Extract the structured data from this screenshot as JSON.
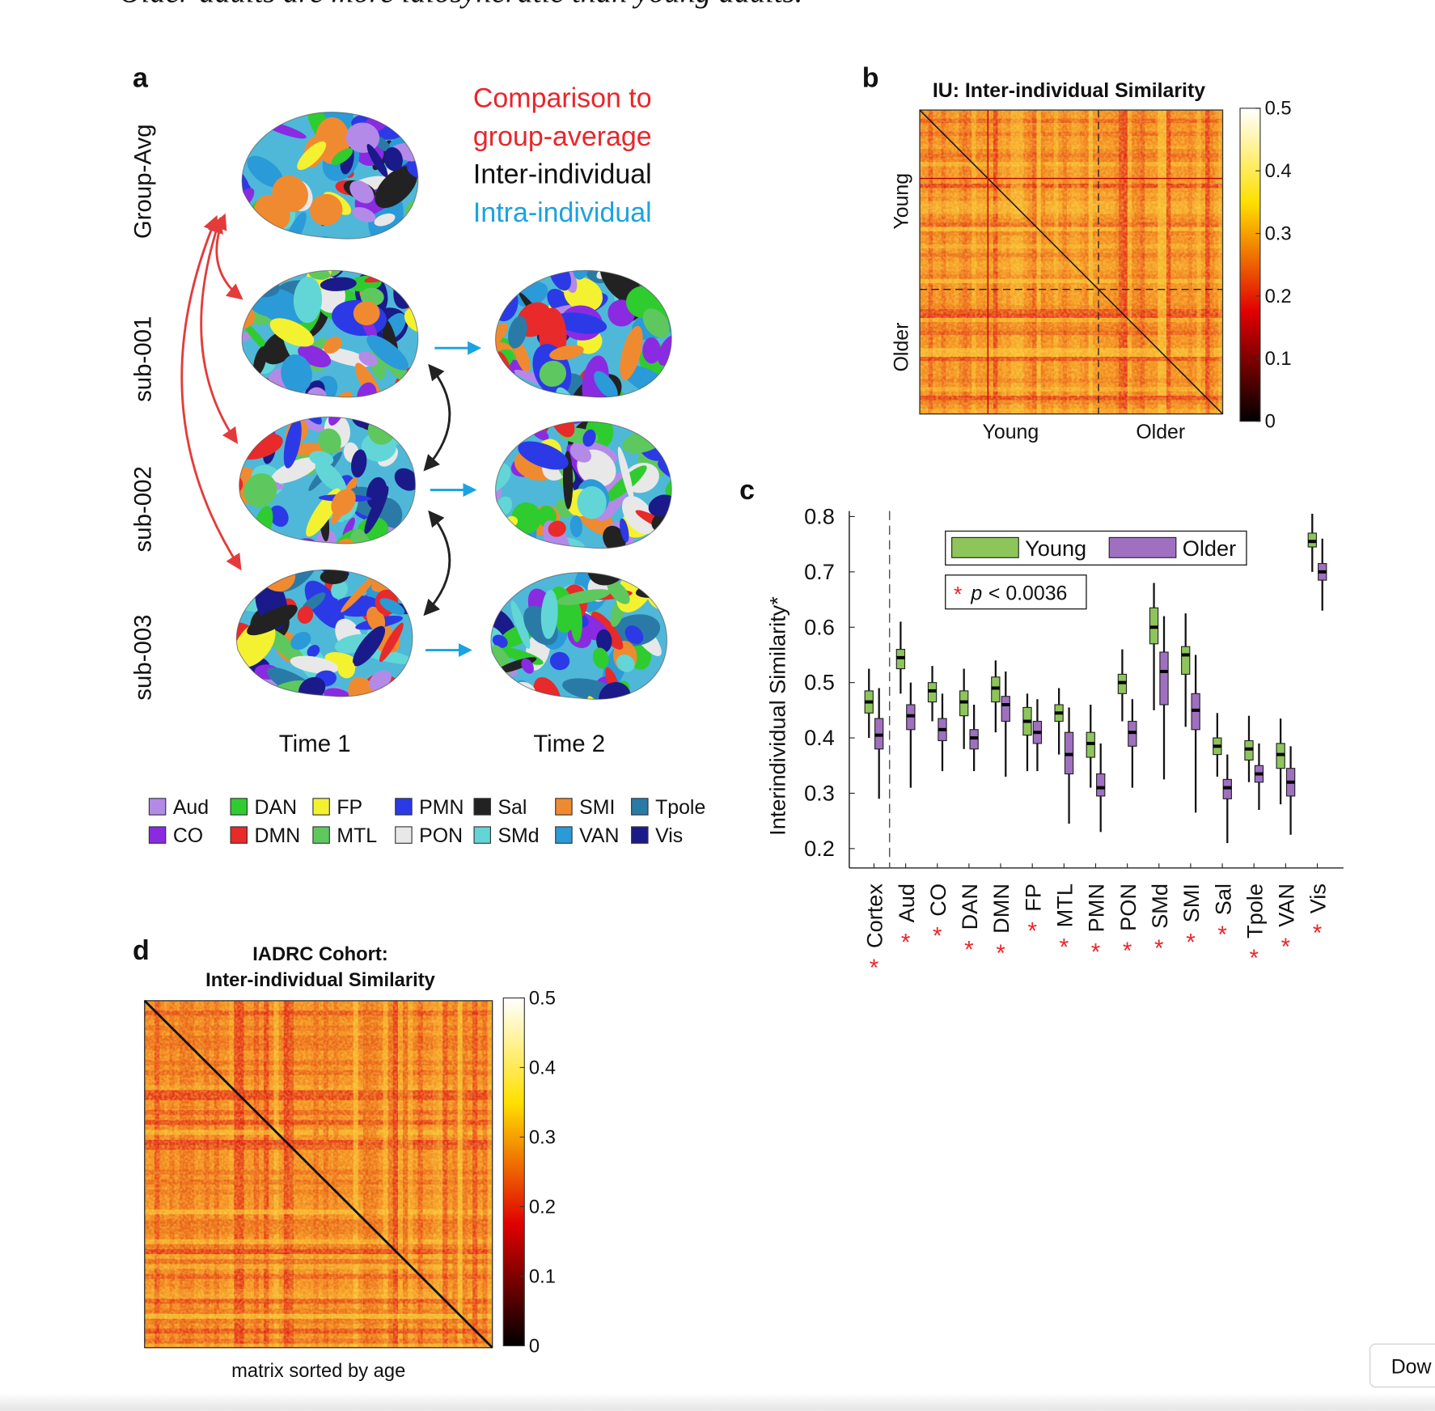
{
  "caption": "Older adults are more idiosyncratic than young adults.",
  "panel_a": {
    "label": "a",
    "legend_lines": [
      "Comparison to",
      "group-average",
      "Inter-individual",
      "Intra-individual"
    ],
    "rows": [
      "Group-Avg",
      "sub-001",
      "sub-002",
      "sub-003"
    ],
    "columns": [
      "Time 1",
      "Time 2"
    ],
    "networks": [
      {
        "name": "Aud",
        "color": "#b48ae8"
      },
      {
        "name": "DAN",
        "color": "#2fcc2f"
      },
      {
        "name": "FP",
        "color": "#f4f230"
      },
      {
        "name": "PMN",
        "color": "#2b3ae6"
      },
      {
        "name": "Sal",
        "color": "#222222"
      },
      {
        "name": "SMI",
        "color": "#f08a30"
      },
      {
        "name": "Tpole",
        "color": "#2a7aa8"
      },
      {
        "name": "CO",
        "color": "#8a2be2"
      },
      {
        "name": "DMN",
        "color": "#e82a2a"
      },
      {
        "name": "MTL",
        "color": "#5ec85e"
      },
      {
        "name": "PON",
        "color": "#e8e8e8"
      },
      {
        "name": "SMd",
        "color": "#62d6d6"
      },
      {
        "name": "VAN",
        "color": "#2a9ad8"
      },
      {
        "name": "Vis",
        "color": "#1a1a8a"
      }
    ]
  },
  "chart_data": [
    {
      "type": "heatmap",
      "label": "b",
      "title": "IU: Inter-individual Similarity",
      "x_groups": [
        "Young",
        "Older"
      ],
      "y_groups": [
        "Young",
        "Older"
      ],
      "clim": [
        0,
        0.5
      ],
      "cticks": [
        0,
        0.1,
        0.2,
        0.3,
        0.4,
        0.5
      ],
      "colormap": "hot"
    },
    {
      "type": "box",
      "label": "c",
      "ylabel": "Interindividual Similarity*",
      "categories": [
        "Cortex",
        "Aud",
        "CO",
        "DAN",
        "DMN",
        "FP",
        "MTL",
        "PMN",
        "PON",
        "SMd",
        "SMI",
        "Sal",
        "Tpole",
        "VAN",
        "Vis"
      ],
      "series": [
        {
          "name": "Young",
          "color": "#8dc55a",
          "values": [
            {
              "min": 0.4,
              "q1": 0.445,
              "median": 0.465,
              "q3": 0.485,
              "max": 0.525
            },
            {
              "min": 0.48,
              "q1": 0.525,
              "median": 0.545,
              "q3": 0.56,
              "max": 0.61
            },
            {
              "min": 0.43,
              "q1": 0.465,
              "median": 0.485,
              "q3": 0.5,
              "max": 0.53
            },
            {
              "min": 0.38,
              "q1": 0.44,
              "median": 0.465,
              "q3": 0.485,
              "max": 0.525
            },
            {
              "min": 0.41,
              "q1": 0.465,
              "median": 0.49,
              "q3": 0.51,
              "max": 0.54
            },
            {
              "min": 0.34,
              "q1": 0.405,
              "median": 0.43,
              "q3": 0.455,
              "max": 0.48
            },
            {
              "min": 0.37,
              "q1": 0.43,
              "median": 0.445,
              "q3": 0.46,
              "max": 0.49
            },
            {
              "min": 0.31,
              "q1": 0.365,
              "median": 0.39,
              "q3": 0.41,
              "max": 0.46
            },
            {
              "min": 0.43,
              "q1": 0.48,
              "median": 0.5,
              "q3": 0.515,
              "max": 0.56
            },
            {
              "min": 0.45,
              "q1": 0.57,
              "median": 0.6,
              "q3": 0.635,
              "max": 0.68
            },
            {
              "min": 0.42,
              "q1": 0.515,
              "median": 0.55,
              "q3": 0.565,
              "max": 0.625
            },
            {
              "min": 0.33,
              "q1": 0.37,
              "median": 0.385,
              "q3": 0.4,
              "max": 0.445
            },
            {
              "min": 0.32,
              "q1": 0.36,
              "median": 0.38,
              "q3": 0.395,
              "max": 0.44
            },
            {
              "min": 0.28,
              "q1": 0.345,
              "median": 0.37,
              "q3": 0.39,
              "max": 0.435
            },
            {
              "min": 0.7,
              "q1": 0.745,
              "median": 0.755,
              "q3": 0.77,
              "max": 0.805
            }
          ]
        },
        {
          "name": "Older",
          "color": "#a070c0",
          "values": [
            {
              "min": 0.29,
              "q1": 0.38,
              "median": 0.405,
              "q3": 0.435,
              "max": 0.49
            },
            {
              "min": 0.31,
              "q1": 0.415,
              "median": 0.44,
              "q3": 0.46,
              "max": 0.5
            },
            {
              "min": 0.34,
              "q1": 0.395,
              "median": 0.415,
              "q3": 0.435,
              "max": 0.48
            },
            {
              "min": 0.34,
              "q1": 0.38,
              "median": 0.4,
              "q3": 0.415,
              "max": 0.46
            },
            {
              "min": 0.33,
              "q1": 0.43,
              "median": 0.46,
              "q3": 0.475,
              "max": 0.52
            },
            {
              "min": 0.34,
              "q1": 0.39,
              "median": 0.41,
              "q3": 0.43,
              "max": 0.47
            },
            {
              "min": 0.245,
              "q1": 0.335,
              "median": 0.37,
              "q3": 0.41,
              "max": 0.455
            },
            {
              "min": 0.23,
              "q1": 0.295,
              "median": 0.31,
              "q3": 0.335,
              "max": 0.39
            },
            {
              "min": 0.31,
              "q1": 0.385,
              "median": 0.41,
              "q3": 0.43,
              "max": 0.47
            },
            {
              "min": 0.325,
              "q1": 0.46,
              "median": 0.52,
              "q3": 0.555,
              "max": 0.62
            },
            {
              "min": 0.265,
              "q1": 0.415,
              "median": 0.45,
              "q3": 0.48,
              "max": 0.55
            },
            {
              "min": 0.21,
              "q1": 0.29,
              "median": 0.31,
              "q3": 0.325,
              "max": 0.37
            },
            {
              "min": 0.27,
              "q1": 0.32,
              "median": 0.335,
              "q3": 0.35,
              "max": 0.39
            },
            {
              "min": 0.225,
              "q1": 0.295,
              "median": 0.32,
              "q3": 0.345,
              "max": 0.385
            },
            {
              "min": 0.63,
              "q1": 0.685,
              "median": 0.7,
              "q3": 0.715,
              "max": 0.76
            }
          ]
        }
      ],
      "ylim": [
        0.165,
        0.81
      ],
      "yticks": [
        0.2,
        0.3,
        0.4,
        0.5,
        0.6,
        0.7,
        0.8
      ],
      "significance_marker": "*",
      "annotation_symbol": "p",
      "annotation_text": "< 0.0036"
    },
    {
      "type": "heatmap",
      "label": "d",
      "title": [
        "IADRC Cohort:",
        "Inter-individual Similarity"
      ],
      "xlabel": "matrix sorted by age",
      "clim": [
        0,
        0.5
      ],
      "cticks": [
        0,
        0.1,
        0.2,
        0.3,
        0.4,
        0.5
      ],
      "colormap": "hot"
    }
  ],
  "button": "Dow"
}
